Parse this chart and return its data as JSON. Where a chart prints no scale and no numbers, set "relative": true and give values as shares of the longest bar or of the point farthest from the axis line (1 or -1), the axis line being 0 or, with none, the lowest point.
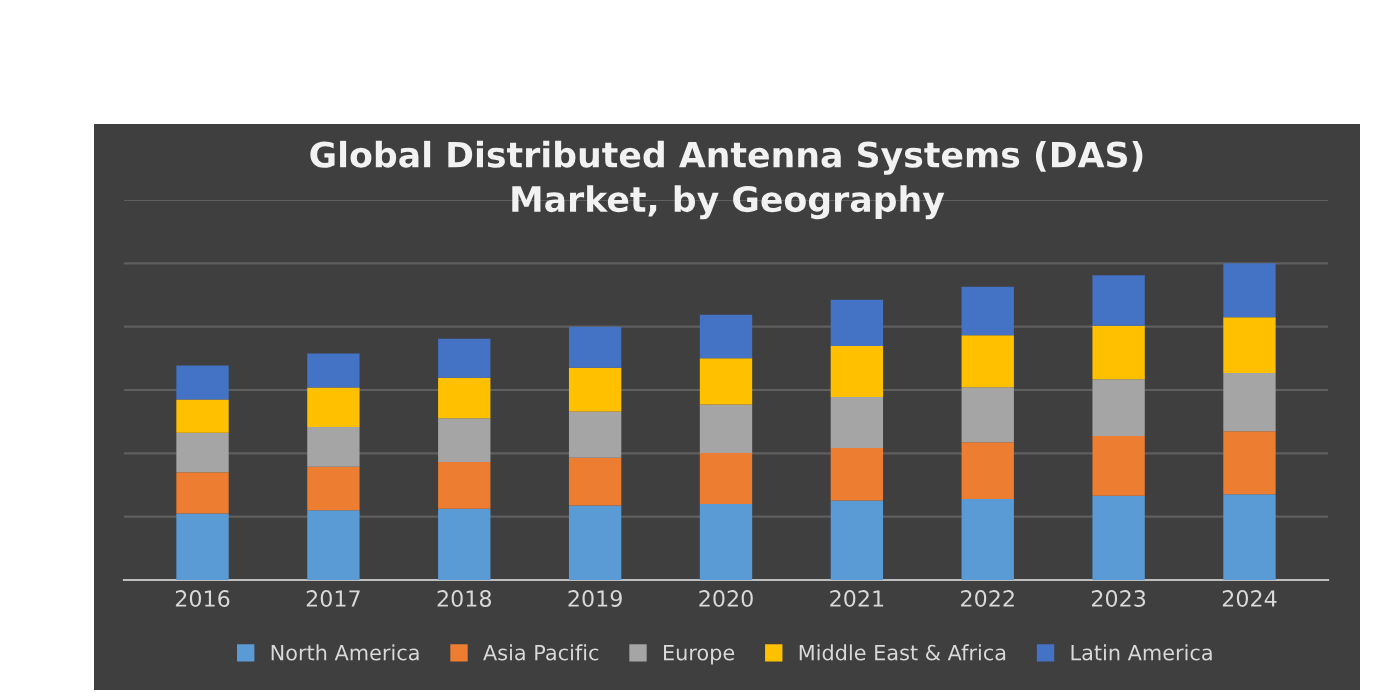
{
  "chart_data": {
    "type": "bar",
    "stacked": true,
    "relative": true,
    "title": "Global Distributed Antenna Systems (DAS)\nMarket, by Geography",
    "categories": [
      "2016",
      "2017",
      "2018",
      "2019",
      "2020",
      "2021",
      "2022",
      "2023",
      "2024"
    ],
    "series": [
      {
        "name": "North America",
        "color": "#5b9bd5",
        "values": [
          0.21,
          0.22,
          0.225,
          0.235,
          0.24,
          0.251,
          0.256,
          0.266,
          0.271
        ]
      },
      {
        "name": "Asia Pacific",
        "color": "#ed7d31",
        "values": [
          0.13,
          0.138,
          0.148,
          0.151,
          0.161,
          0.166,
          0.179,
          0.189,
          0.199
        ]
      },
      {
        "name": "Europe",
        "color": "#a5a5a5",
        "values": [
          0.125,
          0.125,
          0.138,
          0.146,
          0.153,
          0.161,
          0.174,
          0.179,
          0.184
        ]
      },
      {
        "name": "Middle East & Africa",
        "color": "#ffc000",
        "values": [
          0.105,
          0.125,
          0.128,
          0.138,
          0.146,
          0.161,
          0.164,
          0.169,
          0.176
        ]
      },
      {
        "name": "Latin America",
        "color": "#4472c4",
        "values": [
          0.107,
          0.107,
          0.123,
          0.13,
          0.138,
          0.146,
          0.153,
          0.159,
          0.17
        ]
      }
    ],
    "grid": "y",
    "legend": "bottom"
  }
}
